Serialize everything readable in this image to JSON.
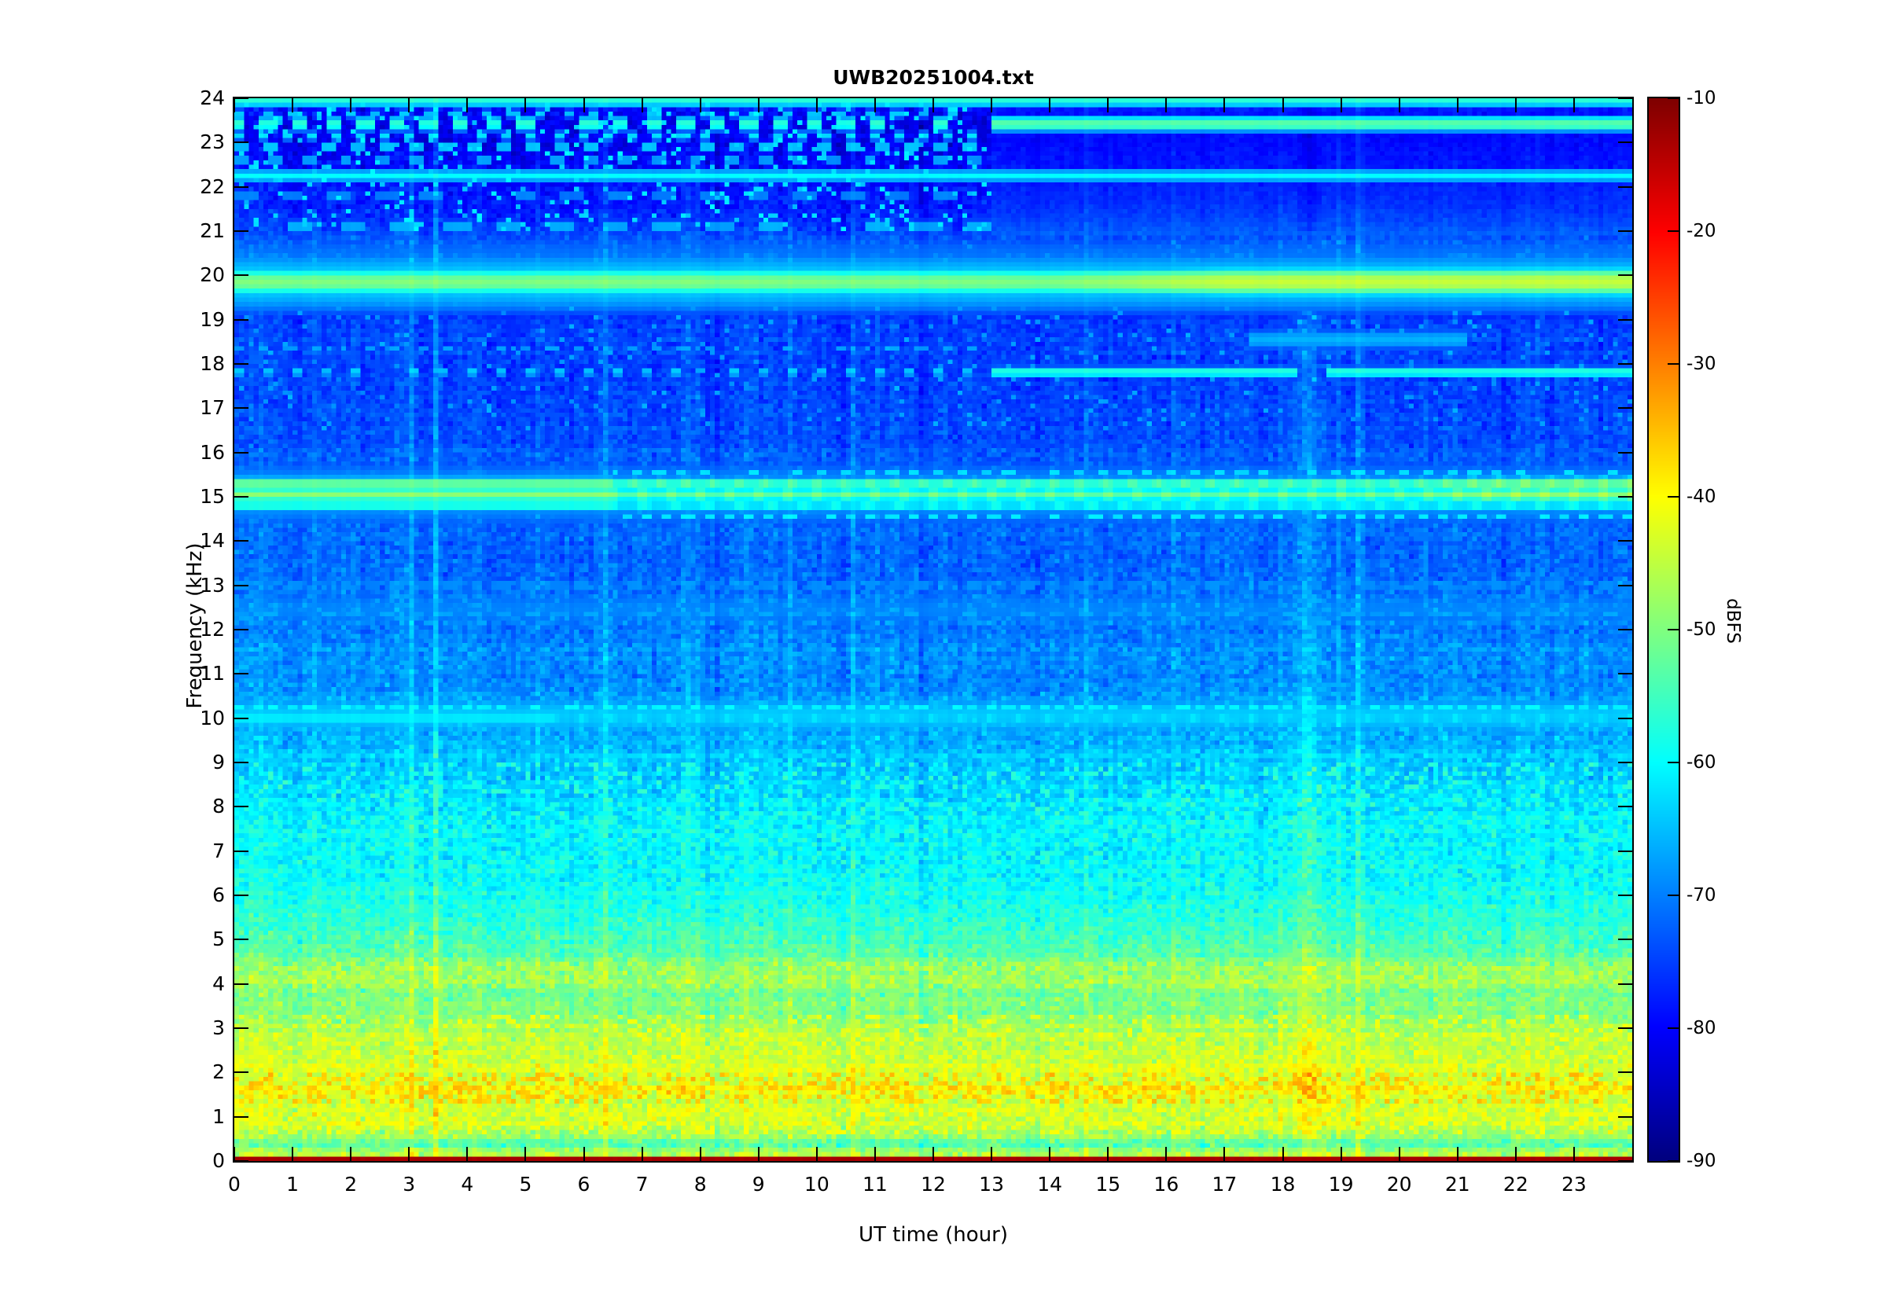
{
  "chart_data": {
    "type": "heatmap",
    "subtype": "spectrogram",
    "title": "UWB20251004.txt",
    "xlabel": "UT time (hour)",
    "ylabel": "Frequency (kHz)",
    "x_range_hours": [
      0,
      24
    ],
    "y_range_khz": [
      0,
      24
    ],
    "value_range_dbfs": [
      -90,
      -10
    ],
    "colormap": "jet",
    "x_ticks": [
      0,
      1,
      2,
      3,
      4,
      5,
      6,
      7,
      8,
      9,
      10,
      11,
      12,
      13,
      14,
      15,
      16,
      17,
      18,
      19,
      20,
      21,
      22,
      23
    ],
    "y_ticks": [
      0,
      1,
      2,
      3,
      4,
      5,
      6,
      7,
      8,
      9,
      10,
      11,
      12,
      13,
      14,
      15,
      16,
      17,
      18,
      19,
      20,
      21,
      22,
      23,
      24
    ],
    "colorbar": {
      "label": "dBFS",
      "ticks": [
        -10,
        -20,
        -30,
        -40,
        -50,
        -60,
        -70,
        -80,
        -90
      ]
    },
    "content_summary": "24-h spectrogram: strong carrier at 19.85 kHz all day (brightens after ~16 UT); lines at 23.4 and 17.8 kHz become continuous after ~13 UT; multi-line complex near 15.0-15.3 kHz and 10 kHz; broadband yellow/orange noise below ~5 kHz with orange speckle band near 1.7 kHz; dark-red DC row at 0 kHz; bright vertical events near 3.0, 3.4, 18.4 and 19.3 UT.",
    "render": {
      "seed": 1337,
      "cols": 288,
      "rows": 240
    },
    "dc_row_db": -13,
    "background_profile_db": [
      [
        0.05,
        -44
      ],
      [
        0.2,
        -46
      ],
      [
        0.35,
        -53
      ],
      [
        0.5,
        -50
      ],
      [
        0.7,
        -45
      ],
      [
        1.0,
        -43
      ],
      [
        1.3,
        -43.5
      ],
      [
        1.65,
        -41
      ],
      [
        1.9,
        -42.5
      ],
      [
        2.2,
        -43
      ],
      [
        2.6,
        -46
      ],
      [
        3.0,
        -46.5
      ],
      [
        3.4,
        -50
      ],
      [
        3.8,
        -50
      ],
      [
        4.15,
        -47.5
      ],
      [
        4.5,
        -51
      ],
      [
        5.0,
        -54
      ],
      [
        5.5,
        -57
      ],
      [
        6.0,
        -58
      ],
      [
        6.5,
        -60
      ],
      [
        7.0,
        -61
      ],
      [
        7.5,
        -60.5
      ],
      [
        8.0,
        -62
      ],
      [
        8.5,
        -63
      ],
      [
        9.0,
        -64
      ],
      [
        9.5,
        -66
      ],
      [
        10.0,
        -67
      ],
      [
        10.5,
        -68
      ],
      [
        11.0,
        -69
      ],
      [
        11.5,
        -68.5
      ],
      [
        12.0,
        -70
      ],
      [
        12.5,
        -70
      ],
      [
        13.0,
        -71
      ],
      [
        13.5,
        -72
      ],
      [
        14.0,
        -72
      ],
      [
        14.5,
        -71.5
      ],
      [
        15.0,
        -70.5
      ],
      [
        15.5,
        -72
      ],
      [
        16.0,
        -73
      ],
      [
        16.5,
        -74
      ],
      [
        17.0,
        -74
      ],
      [
        17.5,
        -75
      ],
      [
        18.0,
        -75
      ],
      [
        18.5,
        -74.5
      ],
      [
        19.0,
        -75
      ],
      [
        19.5,
        -76
      ],
      [
        20.0,
        -73
      ],
      [
        20.4,
        -71
      ],
      [
        20.8,
        -73
      ],
      [
        21.2,
        -76
      ],
      [
        21.6,
        -78
      ],
      [
        22.0,
        -79
      ],
      [
        22.5,
        -80
      ],
      [
        23.0,
        -81
      ],
      [
        23.5,
        -81
      ],
      [
        24.0,
        -79
      ]
    ],
    "noise_amp_db": [
      [
        0,
        4.2
      ],
      [
        5,
        4.0
      ],
      [
        9,
        3.6
      ],
      [
        16,
        3.0
      ],
      [
        20.9,
        2.9
      ],
      [
        24,
        3.3
      ]
    ],
    "smooth_region": {
      "t_start": 13,
      "f_start": 20.9,
      "boost_db": 1.8,
      "noise_scale": 0.45,
      "col_scale": 0.6
    },
    "speckle_bands": [
      {
        "f": [
          21,
          24
        ],
        "t": [
          0,
          13
        ],
        "density": 0.09,
        "db": -63,
        "spread": 3
      },
      {
        "f": [
          1.35,
          2.0
        ],
        "t": [
          0,
          24
        ],
        "density": 0.3,
        "db": -36,
        "spread": 2.5
      },
      {
        "f": [
          0.6,
          1.35
        ],
        "t": [
          0,
          24
        ],
        "density": 0.25,
        "db": -41,
        "spread": 2
      },
      {
        "f": [
          3.9,
          4.45
        ],
        "t": [
          0,
          24
        ],
        "density": 0.25,
        "db": -45,
        "spread": 2
      },
      {
        "f": [
          2.0,
          3.3
        ],
        "t": [
          0,
          24
        ],
        "density": 0.18,
        "db": -42,
        "spread": 2
      },
      {
        "f": [
          6.3,
          9.0
        ],
        "t": [
          0,
          24
        ],
        "density": 0.15,
        "db": -57,
        "spread": 2
      },
      {
        "f": [
          16.5,
          19.5
        ],
        "t": [
          0,
          24
        ],
        "density": 0.04,
        "db": -68,
        "spread": 2
      }
    ],
    "horizontal_lines": [
      {
        "f": 23.95,
        "w": 0.07,
        "t": [
          0,
          24
        ],
        "db": -57,
        "style": "solid"
      },
      {
        "f": 23.42,
        "w": 0.08,
        "t": [
          13,
          24
        ],
        "db": -53,
        "style": "solid"
      },
      {
        "f": 23.42,
        "w": 0.08,
        "t": [
          0,
          13
        ],
        "db": -57,
        "style": "dash",
        "period": 0.55,
        "duty": 0.5,
        "phase": 0.1
      },
      {
        "f": 23.65,
        "w": 0.06,
        "t": [
          0,
          13
        ],
        "db": -65,
        "style": "dash",
        "period": 0.47,
        "duty": 0.38
      },
      {
        "f": 23.15,
        "w": 0.06,
        "t": [
          0,
          13
        ],
        "db": -63,
        "style": "dash",
        "period": 0.42,
        "duty": 0.4
      },
      {
        "f": 22.9,
        "w": 0.06,
        "t": [
          0,
          13
        ],
        "db": -63,
        "style": "dash",
        "period": 0.5,
        "duty": 0.42
      },
      {
        "f": 22.6,
        "w": 0.06,
        "t": [
          0,
          13
        ],
        "db": -66,
        "style": "dash",
        "period": 0.6,
        "duty": 0.4
      },
      {
        "f": 22.25,
        "w": 0.07,
        "t": [
          0,
          24
        ],
        "db": -60,
        "style": "solid"
      },
      {
        "f": 21.8,
        "w": 0.06,
        "t": [
          0,
          13
        ],
        "db": -68,
        "style": "dash",
        "period": 0.8,
        "duty": 0.5
      },
      {
        "f": 21.1,
        "w": 0.09,
        "t": [
          0,
          13
        ],
        "db": -66,
        "style": "dash",
        "period": 0.9,
        "duty": 0.5
      },
      {
        "f": 20.45,
        "w": 0.35,
        "t": [
          0,
          24
        ],
        "db": -71,
        "style": "solid"
      },
      {
        "f": 20.5,
        "w": 0.05,
        "t": [
          0,
          24
        ],
        "db": -70,
        "style": "dash",
        "period": 0.3,
        "duty": 0.5
      },
      {
        "f": 19.85,
        "w": 0.13,
        "t": [
          0,
          24
        ],
        "db": -50,
        "style": "solid",
        "ramp": [
          14,
          17,
          5.5
        ]
      },
      {
        "f": 19.85,
        "w": 0.4,
        "t": [
          0,
          24
        ],
        "db": -63,
        "style": "solid"
      },
      {
        "f": 18.55,
        "w": 0.14,
        "t": [
          17.4,
          21.2
        ],
        "db": -66,
        "style": "solid"
      },
      {
        "f": 17.82,
        "w": 0.06,
        "t": [
          13,
          18.25
        ],
        "db": -57,
        "style": "solid"
      },
      {
        "f": 17.82,
        "w": 0.06,
        "t": [
          18.72,
          24
        ],
        "db": -57,
        "style": "solid"
      },
      {
        "f": 17.82,
        "w": 0.06,
        "t": [
          0,
          13
        ],
        "db": -64,
        "style": "dash",
        "period": 0.5,
        "duty": 0.3
      },
      {
        "f": 18.35,
        "w": 0.05,
        "t": [
          0,
          13
        ],
        "db": -68,
        "style": "dash",
        "period": 0.45,
        "duty": 0.35
      },
      {
        "f": 16.2,
        "w": 0.05,
        "t": [
          0,
          24
        ],
        "db": -72,
        "style": "dash",
        "period": 0.4,
        "duty": 0.5
      },
      {
        "f": 15.3,
        "w": 0.07,
        "t": [
          0,
          24
        ],
        "db": -51,
        "style": "wavy",
        "wave": [
          6.5,
          0.45,
          9
        ],
        "ramp": [
          20.2,
          21.5,
          4
        ]
      },
      {
        "f": 15.05,
        "w": 0.07,
        "t": [
          0,
          24
        ],
        "db": -49,
        "style": "wavy",
        "wave": [
          6.5,
          0.5,
          9
        ],
        "phase": 1.5,
        "ramp": [
          20.2,
          21.5,
          4
        ]
      },
      {
        "f": 14.8,
        "w": 0.06,
        "t": [
          0,
          24
        ],
        "db": -56,
        "style": "wavy",
        "wave": [
          6.5,
          0.55,
          8
        ],
        "phase": 3
      },
      {
        "f": 15.05,
        "w": 0.5,
        "t": [
          0,
          24
        ],
        "db": -67,
        "style": "solid"
      },
      {
        "f": 14.55,
        "w": 0.05,
        "t": [
          6.5,
          24
        ],
        "db": -62,
        "style": "dash",
        "period": 0.35,
        "duty": 0.5
      },
      {
        "f": 15.55,
        "w": 0.05,
        "t": [
          6.5,
          24
        ],
        "db": -63,
        "style": "dash",
        "period": 0.4,
        "duty": 0.45
      },
      {
        "f": 13.0,
        "w": 0.05,
        "t": [
          0,
          24
        ],
        "db": -66,
        "style": "dash",
        "period": 0.45,
        "duty": 0.5
      },
      {
        "f": 12.45,
        "w": 0.35,
        "t": [
          0,
          24
        ],
        "db": -69.5,
        "style": "solid"
      },
      {
        "f": 12.35,
        "w": 0.05,
        "t": [
          0,
          24
        ],
        "db": -67.5,
        "style": "dash",
        "period": 0.5,
        "duty": 0.55
      },
      {
        "f": 12.1,
        "w": 0.05,
        "t": [
          0,
          24
        ],
        "db": -68,
        "style": "dash",
        "period": 0.4,
        "duty": 0.5
      },
      {
        "f": 11.55,
        "w": 0.05,
        "t": [
          0,
          24
        ],
        "db": -67,
        "style": "dash",
        "period": 0.35,
        "duty": 0.45
      },
      {
        "f": 10.25,
        "w": 0.06,
        "t": [
          0,
          24
        ],
        "db": -61,
        "style": "dash",
        "period": 0.3,
        "duty": 0.6
      },
      {
        "f": 10.0,
        "w": 0.07,
        "t": [
          0,
          24
        ],
        "db": -60,
        "style": "wavy",
        "wave": [
          5.5,
          0.5,
          7
        ],
        "phase": 2
      },
      {
        "f": 10.05,
        "w": 0.3,
        "t": [
          0,
          24
        ],
        "db": -64,
        "style": "solid"
      },
      {
        "f": 9.7,
        "w": 0.05,
        "t": [
          0,
          24
        ],
        "db": -66,
        "style": "dash",
        "period": 0.4,
        "duty": 0.5
      },
      {
        "f": 9.15,
        "w": 0.05,
        "t": [
          0,
          24
        ],
        "db": -63,
        "style": "dash",
        "period": 0.35,
        "duty": 0.5,
        "phase": 0.2
      },
      {
        "f": 8.0,
        "w": 0.05,
        "t": [
          0,
          24
        ],
        "db": -64,
        "style": "dash",
        "period": 0.4,
        "duty": 0.5
      },
      {
        "f": 7.0,
        "w": 0.05,
        "t": [
          0,
          24
        ],
        "db": -63,
        "style": "dash",
        "period": 0.45,
        "duty": 0.5
      },
      {
        "f": 6.0,
        "w": 0.05,
        "t": [
          0,
          24
        ],
        "db": -61,
        "style": "dash",
        "period": 0.35,
        "duty": 0.55
      },
      {
        "f": 5.35,
        "w": 0.05,
        "t": [
          0,
          24
        ],
        "db": -60,
        "style": "dash",
        "period": 0.4,
        "duty": 0.5
      }
    ],
    "vertical_lines": [
      {
        "h": 0.35,
        "wd": 0.02,
        "db": 3
      },
      {
        "h": 1.38,
        "wd": 0.02,
        "db": 3
      },
      {
        "h": 2.32,
        "wd": 0.025,
        "db": 3.5
      },
      {
        "h": 3.02,
        "wd": 0.04,
        "db": 6
      },
      {
        "h": 3.44,
        "wd": 0.04,
        "db": 7
      },
      {
        "h": 4.42,
        "wd": 0.025,
        "db": 3.5
      },
      {
        "h": 5.22,
        "wd": 0.02,
        "db": 3
      },
      {
        "h": 5.8,
        "wd": 0.03,
        "db": -3
      },
      {
        "h": 6.36,
        "wd": 0.03,
        "db": 4.5
      },
      {
        "h": 7.82,
        "wd": 0.02,
        "db": 3
      },
      {
        "h": 8.3,
        "wd": 0.03,
        "db": -2.5
      },
      {
        "h": 8.76,
        "wd": 0.02,
        "db": 3
      },
      {
        "h": 9.56,
        "wd": 0.025,
        "db": 3.5
      },
      {
        "h": 10.62,
        "wd": 0.02,
        "db": 3
      },
      {
        "h": 11.32,
        "wd": 0.02,
        "db": 3
      },
      {
        "h": 11.8,
        "wd": 0.04,
        "db": -3
      },
      {
        "h": 12.22,
        "wd": 0.025,
        "db": 3.5
      },
      {
        "h": 13.06,
        "wd": 0.02,
        "db": 3
      },
      {
        "h": 13.8,
        "wd": 0.03,
        "db": -2.5
      },
      {
        "h": 14.62,
        "wd": 0.02,
        "db": 3
      },
      {
        "h": 15.42,
        "wd": 0.02,
        "db": 3
      },
      {
        "h": 16.12,
        "wd": 0.02,
        "db": 3
      },
      {
        "h": 16.6,
        "wd": 0.04,
        "db": -2.5
      },
      {
        "h": 17.16,
        "wd": 0.02,
        "db": 3
      },
      {
        "h": 18.45,
        "wd": 0.18,
        "db": 4.5,
        "fr": [
          0,
          19.6
        ]
      },
      {
        "h": 18.45,
        "wd": 0.18,
        "db": -2.5,
        "fr": [
          21,
          24
        ]
      },
      {
        "h": 18.96,
        "wd": 0.03,
        "db": 3.5
      },
      {
        "h": 19.33,
        "wd": 0.05,
        "db": 8
      },
      {
        "h": 20.32,
        "wd": 0.02,
        "db": 3
      },
      {
        "h": 21.32,
        "wd": 0.02,
        "db": 3
      },
      {
        "h": 21.8,
        "wd": 0.03,
        "db": -3
      },
      {
        "h": 22.36,
        "wd": 0.02,
        "db": 3
      },
      {
        "h": 23.22,
        "wd": 0.02,
        "db": 3
      }
    ]
  }
}
